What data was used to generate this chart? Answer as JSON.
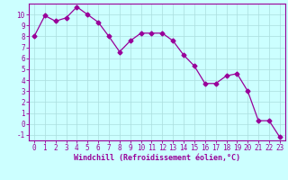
{
  "x": [
    0,
    1,
    2,
    3,
    4,
    5,
    6,
    7,
    8,
    9,
    10,
    11,
    12,
    13,
    14,
    15,
    16,
    17,
    18,
    19,
    20,
    21,
    22,
    23
  ],
  "y": [
    8.0,
    9.9,
    9.4,
    9.7,
    10.7,
    10.0,
    9.3,
    8.0,
    6.6,
    7.6,
    8.3,
    8.3,
    8.3,
    7.6,
    6.3,
    5.3,
    3.7,
    3.7,
    4.4,
    4.6,
    3.0,
    0.3,
    0.3,
    -1.2
  ],
  "line_color": "#990099",
  "marker": "D",
  "marker_size": 2.5,
  "bg_color": "#ccffff",
  "grid_color": "#aadddd",
  "xlabel": "Windchill (Refroidissement éolien,°C)",
  "xlabel_color": "#990099",
  "tick_color": "#990099",
  "spine_color": "#990099",
  "xlim": [
    -0.5,
    23.5
  ],
  "ylim": [
    -1.5,
    11.0
  ],
  "yticks": [
    -1,
    0,
    1,
    2,
    3,
    4,
    5,
    6,
    7,
    8,
    9,
    10
  ],
  "xticks": [
    0,
    1,
    2,
    3,
    4,
    5,
    6,
    7,
    8,
    9,
    10,
    11,
    12,
    13,
    14,
    15,
    16,
    17,
    18,
    19,
    20,
    21,
    22,
    23
  ],
  "tick_fontsize": 5.5,
  "xlabel_fontsize": 6.0,
  "linewidth": 0.9
}
